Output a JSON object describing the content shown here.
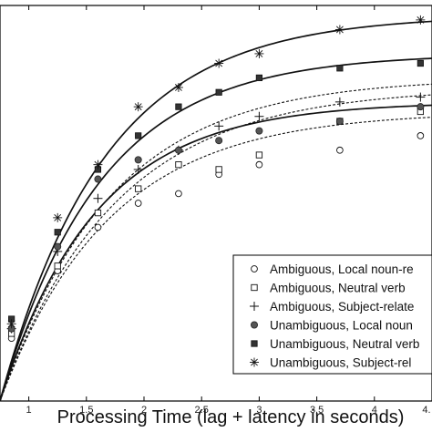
{
  "chart_data": {
    "type": "scatter",
    "xlabel": "Processing Time (lag + latency in seconds)",
    "ylabel": "",
    "title": "",
    "xlim": [
      0.75,
      4.5
    ],
    "ylim": [
      0,
      4.1
    ],
    "x_ticks": [
      1,
      1.5,
      2,
      2.5,
      3,
      3.5,
      4
    ],
    "x_tick_labels": [
      "1",
      "1.5",
      "2",
      "2.5",
      "3",
      "3.5",
      "4"
    ],
    "x_tick_label_partial": "4.",
    "grid": false,
    "legend_position": "lower-right",
    "series": [
      {
        "name": "Ambiguous, Local noun-re",
        "marker": "circle-open",
        "line_style": "dashed",
        "x": [
          0.85,
          1.25,
          1.6,
          1.95,
          2.3,
          2.65,
          3.0,
          3.7,
          4.4
        ],
        "y": [
          0.65,
          1.35,
          1.8,
          2.05,
          2.15,
          2.35,
          2.45,
          2.6,
          2.75
        ],
        "curve": {
          "asymptote": 3.0,
          "rate": 1.05,
          "intercept": 0.75
        }
      },
      {
        "name": "Ambiguous, Neutral verb",
        "marker": "square-open",
        "line_style": "dashed",
        "x": [
          0.85,
          1.25,
          1.6,
          1.95,
          2.3,
          2.65,
          3.0,
          3.7,
          4.4
        ],
        "y": [
          0.7,
          1.4,
          1.95,
          2.2,
          2.45,
          2.4,
          2.55,
          2.9,
          3.0
        ],
        "curve": {
          "asymptote": 3.25,
          "rate": 1.0,
          "intercept": 0.75
        }
      },
      {
        "name": "Ambiguous, Subject-relate",
        "marker": "plus",
        "line_style": "dashed",
        "x": [
          0.85,
          1.25,
          1.6,
          1.95,
          2.3,
          2.65,
          3.0,
          3.7,
          4.4
        ],
        "y": [
          0.75,
          1.55,
          2.1,
          2.4,
          2.6,
          2.85,
          2.95,
          3.1,
          3.15
        ],
        "curve": {
          "asymptote": 3.35,
          "rate": 1.05,
          "intercept": 0.75
        }
      },
      {
        "name": "Unambiguous, Local noun",
        "marker": "circle-filled",
        "line_style": "solid",
        "x": [
          0.85,
          1.25,
          1.6,
          1.95,
          2.3,
          2.65,
          3.0,
          3.7,
          4.4
        ],
        "y": [
          0.75,
          1.6,
          2.3,
          2.5,
          2.6,
          2.7,
          2.8,
          2.9,
          3.05
        ],
        "curve": {
          "asymptote": 3.1,
          "rate": 1.2,
          "intercept": 0.75
        }
      },
      {
        "name": "Unambiguous, Neutral verb",
        "marker": "square-filled",
        "line_style": "solid",
        "x": [
          0.85,
          1.25,
          1.6,
          1.95,
          2.3,
          2.65,
          3.0,
          3.7,
          4.4
        ],
        "y": [
          0.85,
          1.75,
          2.4,
          2.75,
          3.05,
          3.2,
          3.35,
          3.45,
          3.5
        ],
        "curve": {
          "asymptote": 3.6,
          "rate": 1.15,
          "intercept": 0.75
        }
      },
      {
        "name": "Unambiguous, Subject-rel",
        "marker": "asterisk",
        "line_style": "solid",
        "x": [
          0.85,
          1.25,
          1.6,
          1.95,
          2.3,
          2.65,
          3.0,
          3.7,
          4.4
        ],
        "y": [
          0.8,
          1.9,
          2.45,
          3.05,
          3.25,
          3.5,
          3.6,
          3.85,
          3.95
        ],
        "curve": {
          "asymptote": 4.0,
          "rate": 1.1,
          "intercept": 0.75
        }
      }
    ],
    "colors": {
      "axis": "#000000",
      "text": "#111111",
      "marker_fill": "#555555",
      "line": "#111111"
    }
  }
}
